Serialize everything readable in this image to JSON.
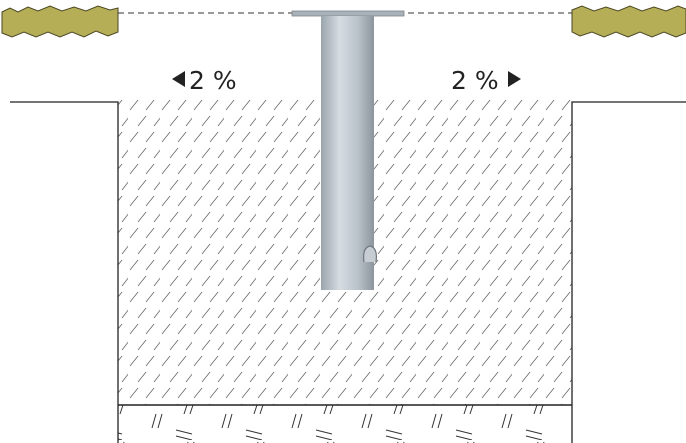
{
  "labels": {
    "left": "2 %",
    "right": "2 %"
  }
}
